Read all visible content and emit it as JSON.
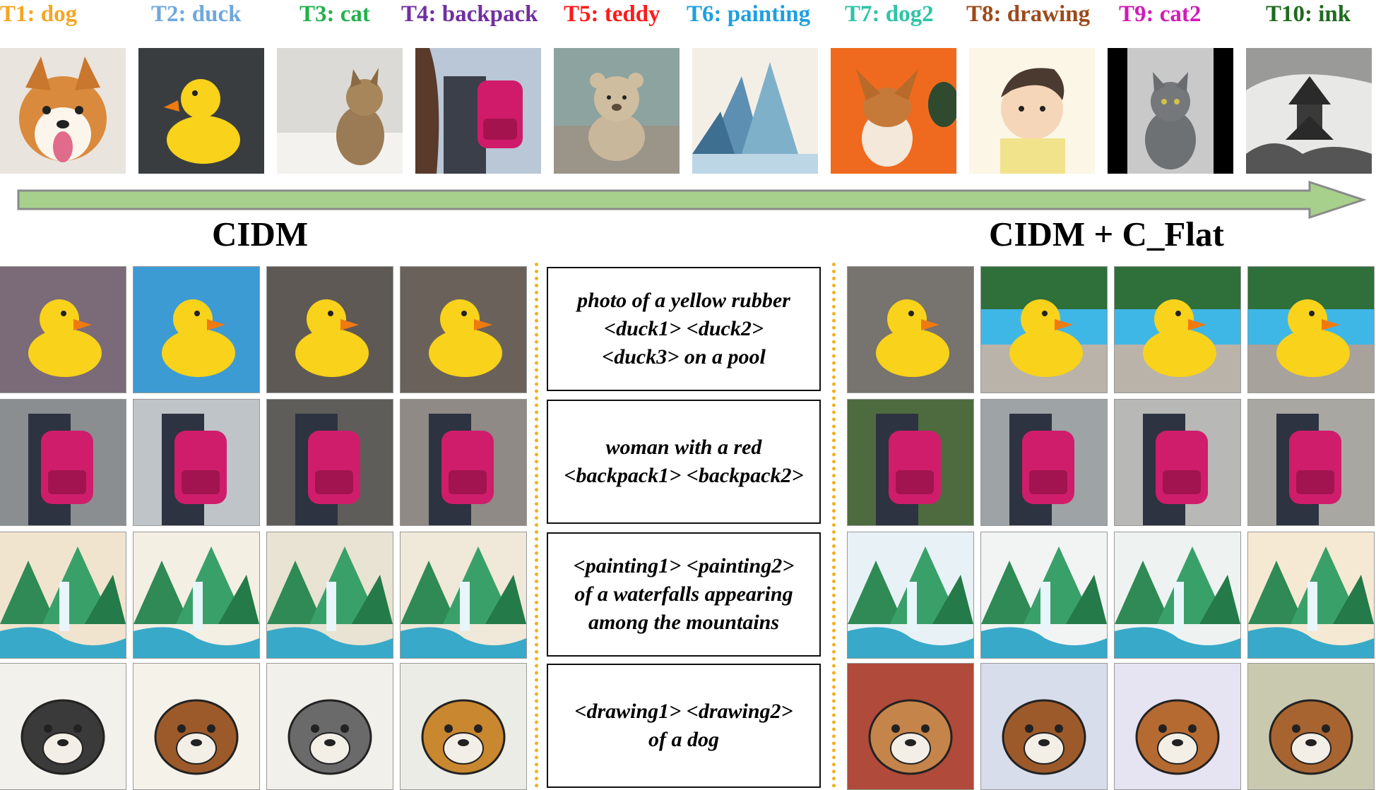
{
  "tasks": [
    {
      "label": "T1: dog",
      "color": "#f5a623"
    },
    {
      "label": "T2: duck",
      "color": "#6fa8dc"
    },
    {
      "label": "T3: cat",
      "color": "#22b14c"
    },
    {
      "label": "T4: backpack",
      "color": "#7030a0"
    },
    {
      "label": "T5: teddy",
      "color": "#ff1a1a"
    },
    {
      "label": "T6: painting",
      "color": "#1f9fe0"
    },
    {
      "label": "T7: dog2",
      "color": "#2ec4a6"
    },
    {
      "label": "T8: drawing",
      "color": "#9c4a1a"
    },
    {
      "label": "T9: cat2",
      "color": "#d11bb8"
    },
    {
      "label": "T10: ink",
      "color": "#1e6b1e"
    }
  ],
  "arrow_color": "#a8d08d",
  "methods": {
    "left": "CIDM",
    "right": "CIDM + C_Flat"
  },
  "prompts": [
    "photo of a yellow rubber\n<duck1> <duck2>\n<duck3> on a pool",
    "woman with a red\n<backpack1> <backpack2>",
    "<painting1> <painting2>\nof a waterfalls appearing\namong the mountains",
    "<drawing1> <drawing2>\nof  a dog"
  ],
  "divider_color": "#f2b01e"
}
